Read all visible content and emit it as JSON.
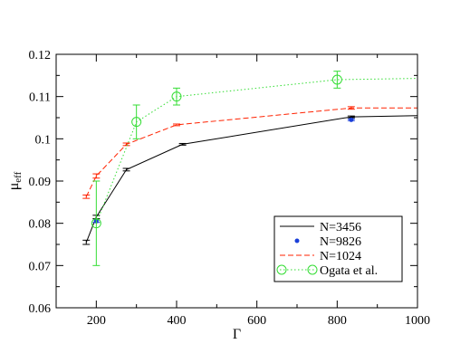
{
  "chart_data": {
    "type": "line",
    "xlabel": "Γ",
    "ylabel_main": "μ",
    "ylabel_sub": "eff",
    "xlim": [
      100,
      1000
    ],
    "ylim": [
      0.06,
      0.12
    ],
    "xticks": [
      200,
      400,
      600,
      800,
      1000
    ],
    "yticks": [
      0.06,
      0.07,
      0.08,
      0.09,
      0.1,
      0.11,
      0.12
    ],
    "xtick_labels": [
      "200",
      "400",
      "600",
      "800",
      "1000"
    ],
    "ytick_labels": [
      "0.06",
      "0.07",
      "0.08",
      "0.09",
      "0.1",
      "0.11",
      "0.12"
    ],
    "grid": false,
    "legend_position": "bottom-right",
    "series": [
      {
        "name": "N=3456",
        "color": "#000000",
        "style": "solid",
        "marker": "none",
        "x": [
          175,
          200,
          275,
          415,
          835,
          1000
        ],
        "y": [
          0.0755,
          0.0815,
          0.0927,
          0.0987,
          0.1052,
          0.1055
        ],
        "err": [
          0.0005,
          0.0004,
          0.0003,
          0.0002,
          0.0002,
          0
        ]
      },
      {
        "name": "N=9826",
        "color": "#1a3fd9",
        "style": "none",
        "marker": "dot",
        "x": [
          200,
          835
        ],
        "y": [
          0.0805,
          0.1045
        ],
        "err": [
          0.0003,
          0.0002
        ]
      },
      {
        "name": "N=1024",
        "color": "#ff2200",
        "style": "dashed",
        "marker": "none",
        "x": [
          175,
          200,
          275,
          400,
          835,
          1000
        ],
        "y": [
          0.0863,
          0.0912,
          0.0987,
          0.1033,
          0.1073,
          0.1073
        ],
        "err": [
          0.0004,
          0.0005,
          0.0003,
          0.0002,
          0.0003,
          0
        ]
      },
      {
        "name": "Ogata et al.",
        "color": "#33dd33",
        "style": "dotted",
        "marker": "open-circle",
        "x": [
          200,
          300,
          400,
          800,
          1000
        ],
        "y": [
          0.08,
          0.104,
          0.11,
          0.114,
          0.1143
        ],
        "err": [
          0.01,
          0.004,
          0.002,
          0.002,
          0
        ],
        "marker_mask": [
          true,
          true,
          true,
          true,
          false
        ]
      }
    ]
  }
}
